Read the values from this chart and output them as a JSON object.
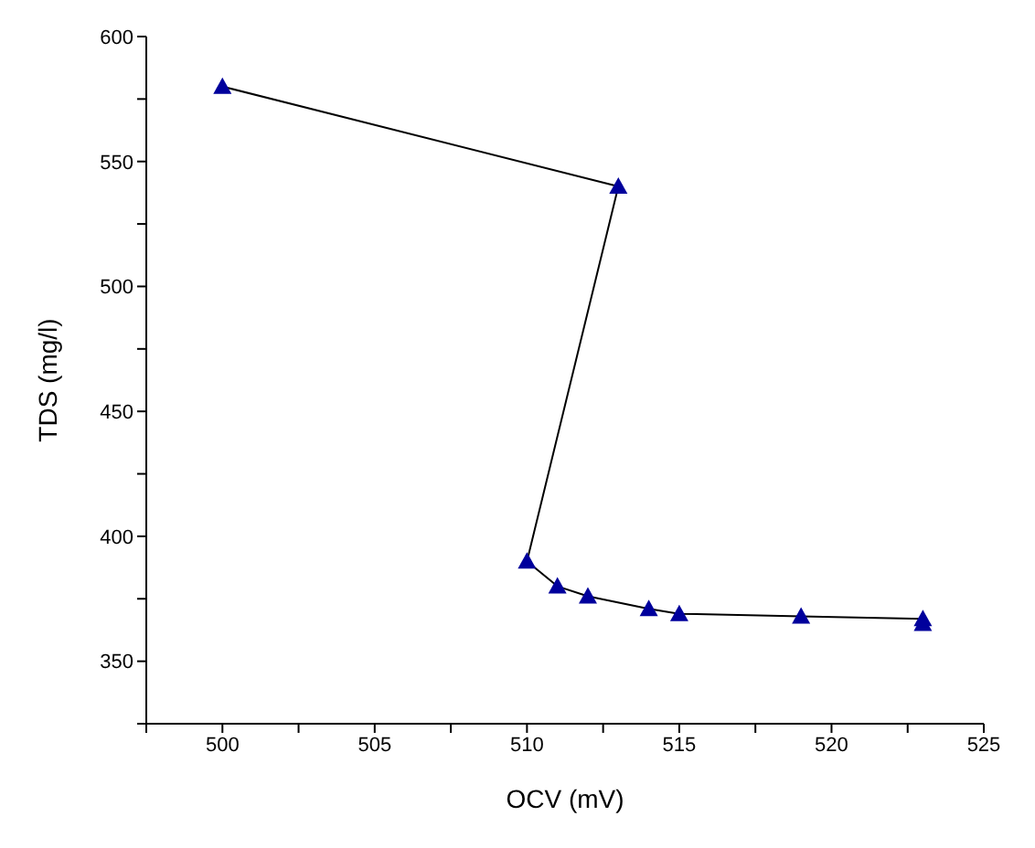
{
  "chart_data": {
    "type": "line",
    "xlabel": "OCV (mV)",
    "ylabel": "TDS (mg/l)",
    "x": [
      500,
      513,
      510,
      511,
      512,
      514,
      515,
      519,
      523,
      523
    ],
    "series": [
      {
        "color": "#00009c",
        "values": [
          580,
          540,
          390,
          380,
          376,
          371,
          369,
          368,
          367,
          365
        ]
      }
    ],
    "xlim": [
      497.5,
      525
    ],
    "xticks": [
      {
        "value": 497.5,
        "label": null
      },
      500,
      {
        "value": 502.5,
        "label": null
      },
      505,
      {
        "value": 507.5,
        "label": null
      },
      510,
      {
        "value": 512.5,
        "label": null
      },
      515,
      {
        "value": 517.5,
        "label": null
      },
      520,
      {
        "value": 522.5,
        "label": null
      },
      525
    ],
    "ylim": [
      325,
      600
    ],
    "yticks": [
      {
        "value": 325,
        "label": null
      },
      350,
      {
        "value": 375,
        "label": null
      },
      400,
      {
        "value": 425,
        "label": null
      },
      450,
      {
        "value": 475,
        "label": null
      },
      500,
      {
        "value": 525,
        "label": null
      },
      550,
      {
        "value": 575,
        "label": null
      },
      600
    ],
    "marker": "triangle",
    "line_style": "solid",
    "grid": false,
    "legend": false
  }
}
